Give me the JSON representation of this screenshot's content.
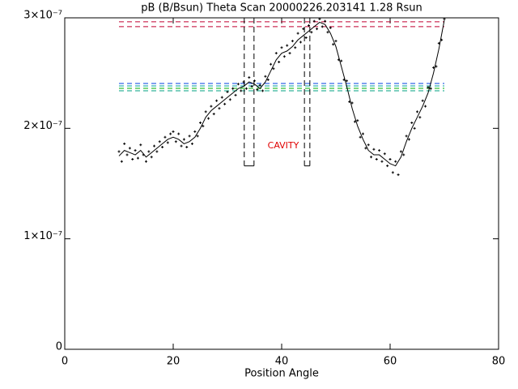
{
  "chart_data": {
    "type": "scatter",
    "title": "pB (B/Bsun) Theta Scan 20000226.203141 1.28 Rsun",
    "xlabel": "Position Angle",
    "xlim": [
      0,
      80
    ],
    "xticks": [
      0,
      20,
      40,
      60,
      80
    ],
    "ylim": [
      0,
      3e-07
    ],
    "yticks": [
      0,
      {
        "value": 1e-07,
        "label": "1×10⁻⁷"
      },
      {
        "value": 2e-07,
        "label": "2×10⁻⁷"
      },
      {
        "value": 3e-07,
        "label": "3×10⁻⁷"
      }
    ],
    "color": "#000000",
    "scatter": {
      "x": [
        10,
        10.5,
        11,
        11.5,
        12,
        12.5,
        13,
        13.5,
        14,
        14.5,
        15,
        15.5,
        16,
        16.5,
        17,
        17.5,
        18,
        18.5,
        19,
        19.5,
        20,
        20.5,
        21,
        21.5,
        22,
        22.5,
        23,
        23.5,
        24,
        24.5,
        25,
        25.5,
        26,
        26.5,
        27,
        27.5,
        28,
        28.5,
        29,
        29.5,
        30,
        30.5,
        31,
        31.5,
        32,
        32.5,
        33,
        33.5,
        34,
        34.5,
        35,
        35.5,
        36,
        36.5,
        37,
        37.5,
        38,
        38.5,
        39,
        39.5,
        40,
        40.5,
        41,
        41.5,
        42,
        42.5,
        43,
        43.5,
        44,
        44.5,
        45,
        45.5,
        46,
        46.5,
        47,
        47.5,
        48,
        48.5,
        49,
        49.5,
        50,
        50.5,
        51,
        51.5,
        52,
        52.5,
        53,
        53.5,
        54,
        54.5,
        55,
        55.5,
        56,
        56.5,
        57,
        57.5,
        58,
        58.5,
        59,
        59.5,
        60,
        60.5,
        61,
        61.5,
        62,
        62.5,
        63,
        63.5,
        64,
        64.5,
        65,
        65.5,
        66,
        66.5,
        67,
        67.5,
        68,
        68.5,
        69,
        69.5,
        70
      ],
      "values": [
        1.79e-07,
        1.7e-07,
        1.86e-07,
        1.76e-07,
        1.82e-07,
        1.72e-07,
        1.8e-07,
        1.73e-07,
        1.85e-07,
        1.76e-07,
        1.7e-07,
        1.79e-07,
        1.74e-07,
        1.84e-07,
        1.79e-07,
        1.88e-07,
        1.83e-07,
        1.92e-07,
        1.87e-07,
        1.95e-07,
        1.97e-07,
        1.88e-07,
        1.95e-07,
        1.84e-07,
        1.9e-07,
        1.83e-07,
        1.93e-07,
        1.86e-07,
        1.97e-07,
        1.93e-07,
        2.05e-07,
        2.02e-07,
        2.15e-07,
        2.09e-07,
        2.2e-07,
        2.13e-07,
        2.25e-07,
        2.18e-07,
        2.28e-07,
        2.22e-07,
        2.33e-07,
        2.26e-07,
        2.36e-07,
        2.3e-07,
        2.4e-07,
        2.34e-07,
        2.42e-07,
        2.36e-07,
        2.46e-07,
        2.38e-07,
        2.43e-07,
        2.35e-07,
        2.39e-07,
        2.34e-07,
        2.47e-07,
        2.44e-07,
        2.58e-07,
        2.54e-07,
        2.68e-07,
        2.6e-07,
        2.73e-07,
        2.65e-07,
        2.75e-07,
        2.68e-07,
        2.79e-07,
        2.73e-07,
        2.86e-07,
        2.78e-07,
        2.9e-07,
        2.82e-07,
        2.93e-07,
        2.87e-07,
        2.97e-07,
        2.9e-07,
        2.99e-07,
        2.92e-07,
        2.97e-07,
        2.87e-07,
        2.91e-07,
        2.76e-07,
        2.79e-07,
        2.62e-07,
        2.61e-07,
        2.44e-07,
        2.43e-07,
        2.24e-07,
        2.23e-07,
        2.06e-07,
        2.07e-07,
        1.92e-07,
        1.95e-07,
        1.82e-07,
        1.85e-07,
        1.74e-07,
        1.81e-07,
        1.72e-07,
        1.8e-07,
        1.7e-07,
        1.77e-07,
        1.66e-07,
        1.72e-07,
        1.6e-07,
        1.7e-07,
        1.58e-07,
        1.79e-07,
        1.76e-07,
        1.93e-07,
        1.9e-07,
        2.05e-07,
        2e-07,
        2.15e-07,
        2.1e-07,
        2.25e-07,
        2.2e-07,
        2.37e-07,
        2.36e-07,
        2.55e-07,
        2.56e-07,
        2.77e-07,
        2.8e-07,
        2.99e-07
      ]
    },
    "line": {
      "x": [
        10,
        11,
        12,
        13,
        14,
        15,
        16,
        17,
        18,
        19,
        20,
        21,
        22,
        23,
        24,
        25,
        26,
        27,
        28,
        29,
        30,
        31,
        32,
        33,
        34,
        35,
        36,
        37,
        38,
        39,
        40,
        41,
        42,
        43,
        44,
        45,
        46,
        47,
        48,
        49,
        50,
        51,
        52,
        53,
        54,
        55,
        56,
        57,
        58,
        59,
        60,
        61,
        62,
        63,
        64,
        65,
        66,
        67,
        68,
        69,
        70
      ],
      "values": [
        1.75e-07,
        1.8e-07,
        1.78e-07,
        1.76e-07,
        1.8e-07,
        1.74e-07,
        1.78e-07,
        1.82e-07,
        1.86e-07,
        1.9e-07,
        1.92e-07,
        1.9e-07,
        1.86e-07,
        1.88e-07,
        1.92e-07,
        2e-07,
        2.1e-07,
        2.16e-07,
        2.2e-07,
        2.24e-07,
        2.28e-07,
        2.32e-07,
        2.36e-07,
        2.38e-07,
        2.42e-07,
        2.4e-07,
        2.36e-07,
        2.42e-07,
        2.52e-07,
        2.62e-07,
        2.68e-07,
        2.7e-07,
        2.74e-07,
        2.8e-07,
        2.84e-07,
        2.88e-07,
        2.92e-07,
        2.96e-07,
        2.94e-07,
        2.86e-07,
        2.74e-07,
        2.56e-07,
        2.38e-07,
        2.18e-07,
        2.02e-07,
        1.9e-07,
        1.8e-07,
        1.76e-07,
        1.76e-07,
        1.72e-07,
        1.68e-07,
        1.66e-07,
        1.74e-07,
        1.88e-07,
        2e-07,
        2.1e-07,
        2.2e-07,
        2.32e-07,
        2.5e-07,
        2.72e-07,
        2.98e-07
      ]
    },
    "hline_x": [
      10,
      70
    ],
    "hlines": [
      {
        "value": 2.964e-07,
        "color": "#c00030"
      },
      {
        "value": 2.92e-07,
        "color": "#c00030"
      },
      {
        "value": 2.406e-07,
        "color": "#0040e0"
      },
      {
        "value": 2.384e-07,
        "color": "#00a0a0"
      },
      {
        "value": 2.362e-07,
        "color": "#00b000"
      },
      {
        "value": 2.34e-07,
        "color": "#00a080"
      }
    ],
    "boxes": [
      {
        "x": [
          33.1,
          34.9
        ],
        "bottom": 1.66e-07
      },
      {
        "x": [
          44.2,
          45.2
        ],
        "bottom": 1.66e-07
      }
    ],
    "annotation": {
      "text": "CAVITY",
      "x": 40.3,
      "y": 1.84e-07,
      "color": "#e00000"
    }
  }
}
